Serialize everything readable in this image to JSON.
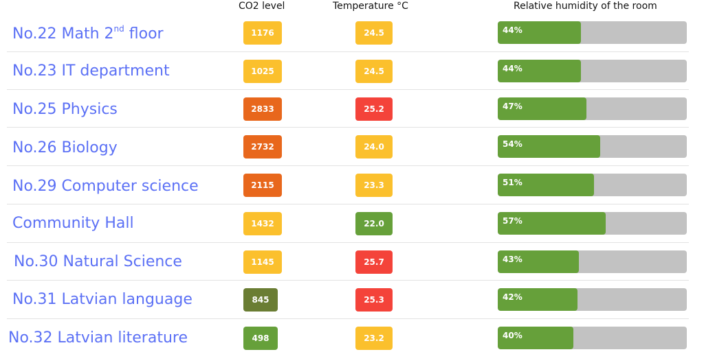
{
  "headers": {
    "co2": "CO2 level",
    "temperature": "Temperature °C",
    "humidity": "Relative humidity of the room"
  },
  "colors": {
    "room_text": "#5b70f5",
    "yellow": "#fbc02d",
    "orange": "#e8671c",
    "red": "#f4433a",
    "green": "#66a03a",
    "olive": "#6a7d33",
    "track": "#c2c2c2"
  },
  "rooms": [
    {
      "name": "No.22 Math 2",
      "name_sup": "nd",
      "name_suffix": " floor",
      "co2": "1176",
      "co2_level": "yellow",
      "temperature": "24.5",
      "temp_level": "yellow",
      "humidity": "44%",
      "humidity_value": 44
    },
    {
      "name": "No.23 IT department",
      "co2": "1025",
      "co2_level": "yellow",
      "temperature": "24.5",
      "temp_level": "yellow",
      "humidity": "44%",
      "humidity_value": 44
    },
    {
      "name": "No.25 Physics",
      "co2": "2833",
      "co2_level": "orange",
      "temperature": "25.2",
      "temp_level": "red",
      "humidity": "47%",
      "humidity_value": 47
    },
    {
      "name": "No.26 Biology",
      "co2": "2732",
      "co2_level": "orange",
      "temperature": "24.0",
      "temp_level": "yellow",
      "humidity": "54%",
      "humidity_value": 54
    },
    {
      "name": "No.29 Computer science",
      "co2": "2115",
      "co2_level": "orange",
      "temperature": "23.3",
      "temp_level": "yellow",
      "humidity": "51%",
      "humidity_value": 51
    },
    {
      "name": "Community Hall",
      "co2": "1432",
      "co2_level": "yellow",
      "temperature": "22.0",
      "temp_level": "green",
      "humidity": "57%",
      "humidity_value": 57
    },
    {
      "name": "No.30 Natural Science",
      "co2": "1145",
      "co2_level": "yellow",
      "temperature": "25.7",
      "temp_level": "red",
      "humidity": "43%",
      "humidity_value": 43
    },
    {
      "name": "No.31 Latvian language",
      "co2": "845",
      "co2_level": "olive",
      "temperature": "25.3",
      "temp_level": "red",
      "humidity": "42%",
      "humidity_value": 42
    },
    {
      "name": "No.32 Latvian literature",
      "co2": "498",
      "co2_level": "green",
      "temperature": "23.2",
      "temp_level": "yellow",
      "humidity": "40%",
      "humidity_value": 40
    }
  ]
}
